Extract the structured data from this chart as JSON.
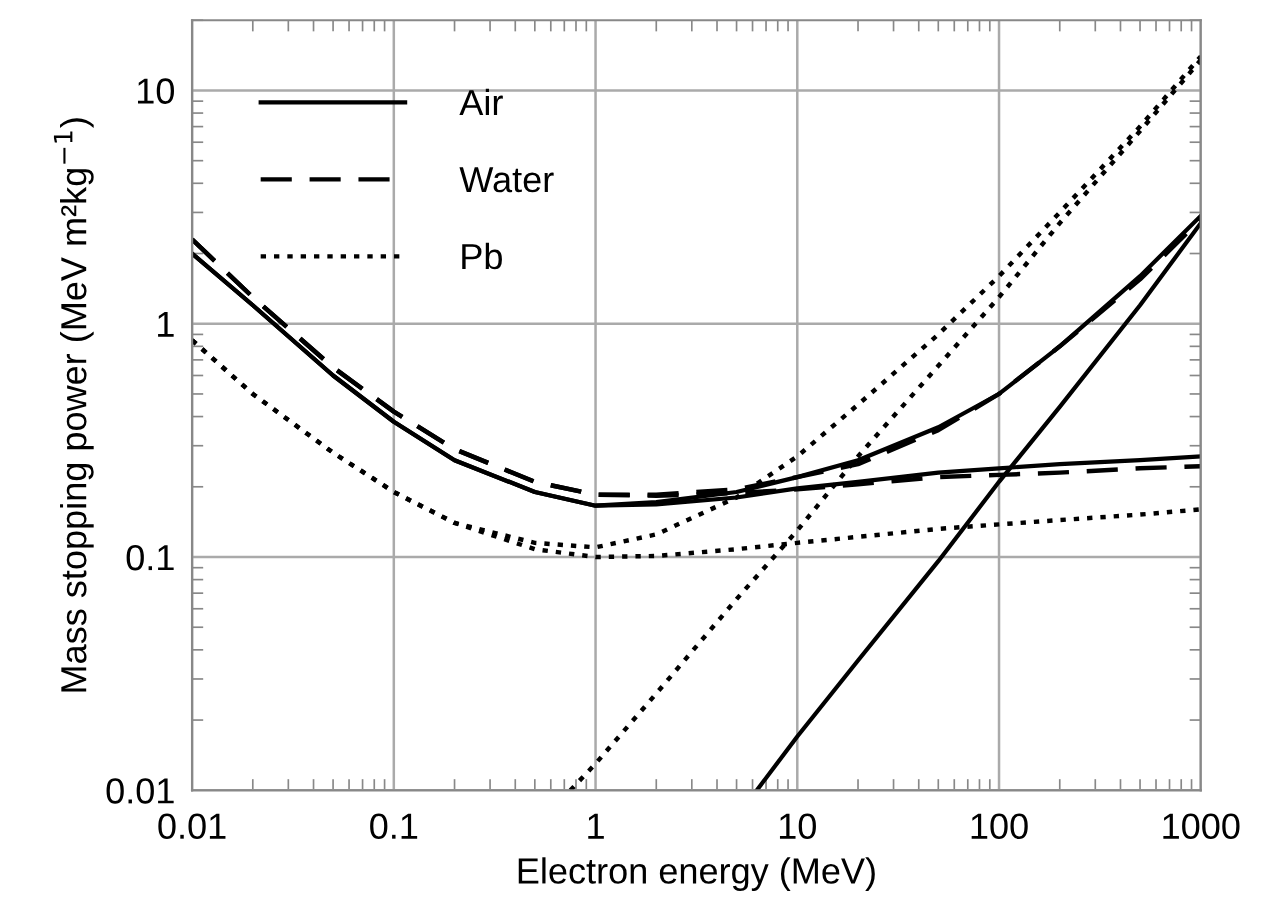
{
  "chart_data": {
    "type": "line",
    "xlabel": "Electron energy (MeV)",
    "ylabel": "Mass stopping power (MeV m²kg$^{−1}$)",
    "log": "xy",
    "xlim": [
      0.01,
      1000
    ],
    "ylim": [
      0.01,
      20
    ],
    "xticks": [
      0.01,
      0.1,
      1,
      10,
      100,
      1000
    ],
    "yticks": [
      0.01,
      0.1,
      1,
      10
    ],
    "grid": true,
    "legend": "top left",
    "series": [
      {
        "name": "Air",
        "color": "#000000",
        "line_style": "solid",
        "x": [
          0.01,
          0.02,
          0.05,
          0.1,
          0.2,
          0.5,
          1,
          2,
          5,
          10,
          20,
          50,
          100,
          200,
          500,
          1000
        ],
        "values": [
          2.0,
          1.2,
          0.6,
          0.38,
          0.26,
          0.19,
          0.166,
          0.172,
          0.19,
          0.22,
          0.26,
          0.36,
          0.5,
          0.8,
          1.6,
          2.9
        ]
      },
      {
        "color": "#000000",
        "line_style": "solid",
        "x": [
          0.01,
          0.02,
          0.05,
          0.1,
          0.2,
          0.5,
          1,
          2,
          5,
          10,
          20,
          50,
          100,
          200,
          500,
          1000
        ],
        "values": [
          2.0,
          1.2,
          0.6,
          0.38,
          0.26,
          0.19,
          0.166,
          0.168,
          0.18,
          0.197,
          0.21,
          0.23,
          0.24,
          0.25,
          0.26,
          0.27
        ]
      },
      {
        "color": "#000000",
        "line_style": "solid",
        "x": [
          6.3,
          10,
          20,
          50,
          100,
          200,
          500,
          1000
        ],
        "values": [
          0.01,
          0.017,
          0.036,
          0.096,
          0.21,
          0.44,
          1.2,
          2.7
        ]
      },
      {
        "name": "Water",
        "color": "#000000",
        "line_style": "dashed",
        "x": [
          0.01,
          0.02,
          0.05,
          0.1,
          0.2,
          0.5,
          1,
          2,
          5,
          10,
          20,
          50,
          100,
          200,
          500,
          1000
        ],
        "values": [
          2.3,
          1.3,
          0.65,
          0.42,
          0.29,
          0.21,
          0.185,
          0.185,
          0.195,
          0.22,
          0.25,
          0.35,
          0.5,
          0.8,
          1.55,
          2.8
        ]
      },
      {
        "color": "#000000",
        "line_style": "dashed",
        "x": [
          0.01,
          0.02,
          0.05,
          0.1,
          0.2,
          0.5,
          1,
          2,
          5,
          10,
          20,
          50,
          100,
          200,
          500,
          1000
        ],
        "values": [
          2.3,
          1.3,
          0.65,
          0.42,
          0.29,
          0.21,
          0.185,
          0.183,
          0.188,
          0.195,
          0.205,
          0.22,
          0.225,
          0.23,
          0.24,
          0.245
        ]
      },
      {
        "name": "Pb",
        "color": "#000000",
        "line_style": "dotted",
        "x": [
          0.01,
          0.02,
          0.05,
          0.1,
          0.2,
          0.5,
          1,
          2,
          5,
          10,
          20,
          50,
          100,
          200,
          500,
          1000
        ],
        "values": [
          0.85,
          0.5,
          0.28,
          0.19,
          0.14,
          0.115,
          0.11,
          0.125,
          0.18,
          0.27,
          0.45,
          0.9,
          1.6,
          3,
          7,
          14
        ]
      },
      {
        "color": "#000000",
        "line_style": "dotted",
        "x": [
          0.01,
          0.02,
          0.05,
          0.1,
          0.2,
          0.5,
          1,
          2,
          5,
          10,
          20,
          50,
          100,
          200,
          500,
          1000
        ],
        "values": [
          0.85,
          0.5,
          0.28,
          0.19,
          0.14,
          0.108,
          0.1,
          0.101,
          0.108,
          0.115,
          0.122,
          0.132,
          0.138,
          0.144,
          0.152,
          0.16
        ]
      },
      {
        "color": "#000000",
        "line_style": "dotted",
        "x": [
          0.75,
          1,
          2,
          5,
          10,
          20,
          50,
          100,
          200,
          500,
          1000
        ],
        "values": [
          0.01,
          0.013,
          0.026,
          0.066,
          0.13,
          0.27,
          0.66,
          1.3,
          2.7,
          6.7,
          13.5
        ]
      }
    ]
  }
}
